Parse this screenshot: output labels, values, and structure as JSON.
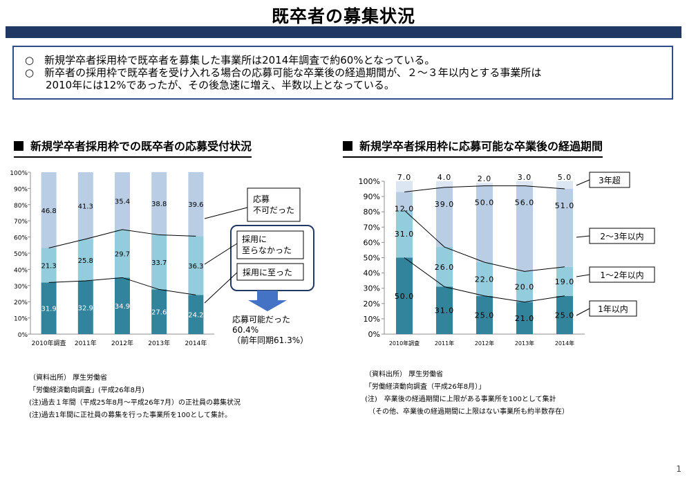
{
  "page": {
    "title": "既卒者の募集状況",
    "summary": [
      "○　新規学卒者採用枠で既卒者を募集した事業所は2014年調査で約60%となっている。",
      "○　新卒者の採用枠で既卒者を受け入れる場合の応募可能な卒業後の経過期間が、２～３年以内とする事業所は",
      "　　2010年には12%であったが、その後急速に増え、半数以上となっている。"
    ],
    "page_number": "1"
  },
  "left": {
    "heading": "新規学卒者採用枠での既卒者の応募受付状況",
    "callouts": {
      "not_possible": "応募\n不可だった",
      "not_hired": "採用に\n至らなかった",
      "hired": "採用に至った",
      "possible_line1": "応募可能だった",
      "possible_line2": "60.4%",
      "possible_line3": "（前年同期61.3%）"
    },
    "notes": [
      "（資料出所）  厚生労働省",
      "「労働経済動向調査」(平成26年8月)",
      "(注)過去１年間（平成25年8月～平成26年7月）の正社員の募集状況",
      "(注)過去1年間に正社員の募集を行った事業所を100として集計。"
    ]
  },
  "right": {
    "heading": "新規学卒者採用枠に応募可能な卒業後の経過期間",
    "legend": {
      "over3": "3年超",
      "y2to3": "2～3年以内",
      "y1to2": "1～2年以内",
      "within1": "1年以内"
    },
    "notes": [
      "（資料出所）  厚生労働省",
      "「労働経済動向調査（平成26年8月）」",
      "(注)　卒業後の経過期間に上限がある事業所を100として集計",
      "　（その他、卒業後の経過期間に上限はない事業所も約半数存在）"
    ]
  },
  "colors": {
    "dark": "#31849b",
    "mid": "#93cddd",
    "light": "#b9cde5",
    "pale": "#dce6f2",
    "navy": "#1f3864",
    "arrow": "#4472c4"
  },
  "chart_data": [
    {
      "type": "bar",
      "stacked": true,
      "title": "新規学卒者採用枠での既卒者の応募受付状況",
      "categories": [
        "2010年調査",
        "2011年",
        "2012年",
        "2013年",
        "2014年"
      ],
      "series": [
        {
          "name": "採用に至った",
          "values": [
            31.9,
            32.9,
            34.9,
            27.6,
            24.2
          ]
        },
        {
          "name": "採用に至らなかった",
          "values": [
            21.3,
            25.8,
            29.7,
            33.7,
            36.3
          ]
        },
        {
          "name": "応募不可だった",
          "values": [
            46.8,
            41.3,
            35.4,
            38.8,
            39.6
          ]
        }
      ],
      "y_ticks": [
        "0%",
        "10%",
        "20%",
        "30%",
        "40%",
        "50%",
        "60%",
        "70%",
        "80%",
        "90%",
        "100%"
      ],
      "ylim": [
        0,
        100
      ],
      "grid": false
    },
    {
      "type": "bar",
      "stacked": true,
      "title": "新規学卒者採用枠に応募可能な卒業後の経過期間",
      "categories": [
        "2010年調査",
        "2011年",
        "2012年",
        "2013年",
        "2014年"
      ],
      "series": [
        {
          "name": "1年以内",
          "values": [
            50.0,
            31.0,
            25.0,
            21.0,
            25.0
          ]
        },
        {
          "name": "1～2年以内",
          "values": [
            31.0,
            26.0,
            22.0,
            20.0,
            19.0
          ]
        },
        {
          "name": "2～3年以内",
          "values": [
            12.0,
            39.0,
            50.0,
            56.0,
            51.0
          ]
        },
        {
          "name": "3年超",
          "values": [
            7.0,
            4.0,
            2.0,
            3.0,
            5.0
          ]
        }
      ],
      "y_ticks": [
        "0%",
        "10%",
        "20%",
        "30%",
        "40%",
        "50%",
        "60%",
        "70%",
        "80%",
        "90%",
        "100%"
      ],
      "ylim": [
        0,
        100
      ],
      "grid": false
    }
  ]
}
